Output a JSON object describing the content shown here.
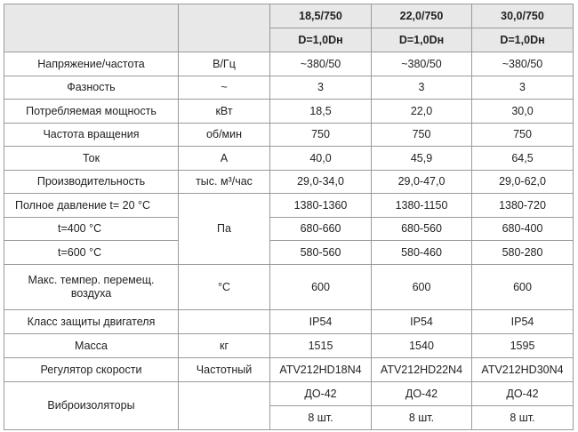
{
  "table": {
    "header": {
      "models": [
        "18,5/750",
        "22,0/750",
        "30,0/750"
      ],
      "diameter": [
        "D=1,0Dн",
        "D=1,0Dн",
        "D=1,0Dн"
      ]
    },
    "rows": [
      {
        "label": "Напряжение/частота",
        "unit": "В/Гц",
        "values": [
          "~380/50",
          "~380/50",
          "~380/50"
        ]
      },
      {
        "label": "Фазность",
        "unit": "~",
        "values": [
          "3",
          "3",
          "3"
        ]
      },
      {
        "label": "Потребляемая мощность",
        "unit": "кВт",
        "values": [
          "18,5",
          "22,0",
          "30,0"
        ]
      },
      {
        "label": "Частота вращения",
        "unit": "об/мин",
        "values": [
          "750",
          "750",
          "750"
        ]
      },
      {
        "label": "Ток",
        "unit": "А",
        "values": [
          "40,0",
          "45,9",
          "64,5"
        ]
      },
      {
        "label": "Производительность",
        "unit": "тыс. м³/час",
        "values": [
          "29,0-34,0",
          "29,0-47,0",
          "29,0-62,0"
        ]
      },
      {
        "label": "Полное давление  t= 20 °C",
        "unit": "Па",
        "values": [
          "1380-1360",
          "1380-1150",
          "1380-720"
        ]
      },
      {
        "label": "t=400 °C",
        "values": [
          "680-660",
          "680-560",
          "680-400"
        ]
      },
      {
        "label": "t=600 °C",
        "values": [
          "580-560",
          "580-460",
          "580-280"
        ]
      },
      {
        "label": "Макс. темпер. перемещ. воздуха",
        "unit": "°C",
        "values": [
          "600",
          "600",
          "600"
        ]
      },
      {
        "label": "Класс защиты двигателя",
        "values": [
          "IP54",
          "IP54",
          "IP54"
        ]
      },
      {
        "label": "Масса",
        "unit": "кг",
        "values": [
          "1515",
          "1540",
          "1595"
        ]
      },
      {
        "label": "Регулятор скорости",
        "unit": "Частотный",
        "values": [
          "ATV212HD18N4",
          "ATV212HD22N4",
          "ATV212HD30N4"
        ]
      },
      {
        "label": "Виброизоляторы",
        "values": [
          "ДО-42",
          "ДО-42",
          "ДО-42"
        ]
      },
      {
        "values": [
          "8 шт.",
          "8 шт.",
          "8 шт."
        ]
      }
    ]
  }
}
